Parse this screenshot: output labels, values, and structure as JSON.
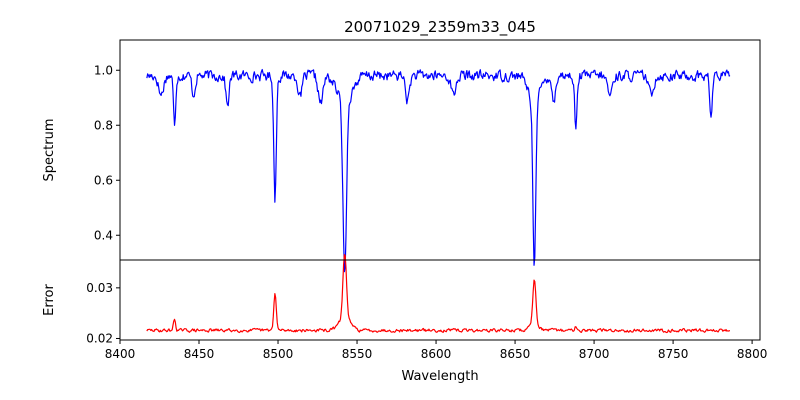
{
  "chart_data": [
    {
      "type": "line",
      "title": "20071029_2359m33_045",
      "xlabel": "",
      "ylabel": "Spectrum",
      "xlim": [
        8400,
        8805
      ],
      "ylim": [
        0.31,
        1.11
      ],
      "yticks": [
        "0.4",
        "0.6",
        "0.8",
        "1.0"
      ],
      "series": [
        {
          "color": "#0000ff",
          "baseline": 0.98,
          "x_range": [
            8417,
            8786
          ],
          "features": [
            {
              "center": 8426,
              "depth": 0.07,
              "width": 1.5
            },
            {
              "center": 8434.5,
              "depth": 0.18,
              "width": 0.7
            },
            {
              "center": 8446.5,
              "depth": 0.07,
              "width": 1.0
            },
            {
              "center": 8468,
              "depth": 0.11,
              "width": 1.0
            },
            {
              "center": 8498.1,
              "depth": 0.45,
              "width": 0.8
            },
            {
              "center": 8514,
              "depth": 0.08,
              "width": 1.2
            },
            {
              "center": 8527,
              "depth": 0.1,
              "width": 1.5
            },
            {
              "center": 8542.2,
              "depth": 0.62,
              "width": 1.1
            },
            {
              "center": 8542.2,
              "depth": 0.1,
              "width": 4.5
            },
            {
              "center": 8582,
              "depth": 0.09,
              "width": 1.2
            },
            {
              "center": 8611,
              "depth": 0.07,
              "width": 1.5
            },
            {
              "center": 8662.2,
              "depth": 0.58,
              "width": 0.9
            },
            {
              "center": 8662.2,
              "depth": 0.1,
              "width": 3.5
            },
            {
              "center": 8674.5,
              "depth": 0.1,
              "width": 1.0
            },
            {
              "center": 8688.5,
              "depth": 0.19,
              "width": 0.8
            },
            {
              "center": 8710,
              "depth": 0.07,
              "width": 1.5
            },
            {
              "center": 8736,
              "depth": 0.07,
              "width": 1.5
            },
            {
              "center": 8774,
              "depth": 0.15,
              "width": 0.8
            }
          ],
          "noise": 0.03
        }
      ]
    },
    {
      "type": "line",
      "title": "",
      "xlabel": "Wavelength",
      "ylabel": "Error",
      "xlim": [
        8400,
        8805
      ],
      "ylim": [
        0.0197,
        0.0355
      ],
      "xticks": [
        "8400",
        "8450",
        "8500",
        "8550",
        "8600",
        "8650",
        "8700",
        "8750",
        "8800"
      ],
      "yticks": [
        "0.02",
        "0.03"
      ],
      "series": [
        {
          "color": "#ff0000",
          "baseline": 0.0216,
          "x_range": [
            8417,
            8786
          ],
          "features": [
            {
              "center": 8434.5,
              "height": 0.0022,
              "width": 0.7
            },
            {
              "center": 8498.1,
              "height": 0.0072,
              "width": 0.8
            },
            {
              "center": 8542.2,
              "height": 0.0127,
              "width": 1.1
            },
            {
              "center": 8542.2,
              "height": 0.0025,
              "width": 3.5
            },
            {
              "center": 8662.2,
              "height": 0.0086,
              "width": 0.9
            },
            {
              "center": 8662.2,
              "height": 0.0018,
              "width": 2.5
            },
            {
              "center": 8688.5,
              "height": 0.001,
              "width": 0.8
            }
          ],
          "noise": 0.0005
        }
      ]
    }
  ]
}
